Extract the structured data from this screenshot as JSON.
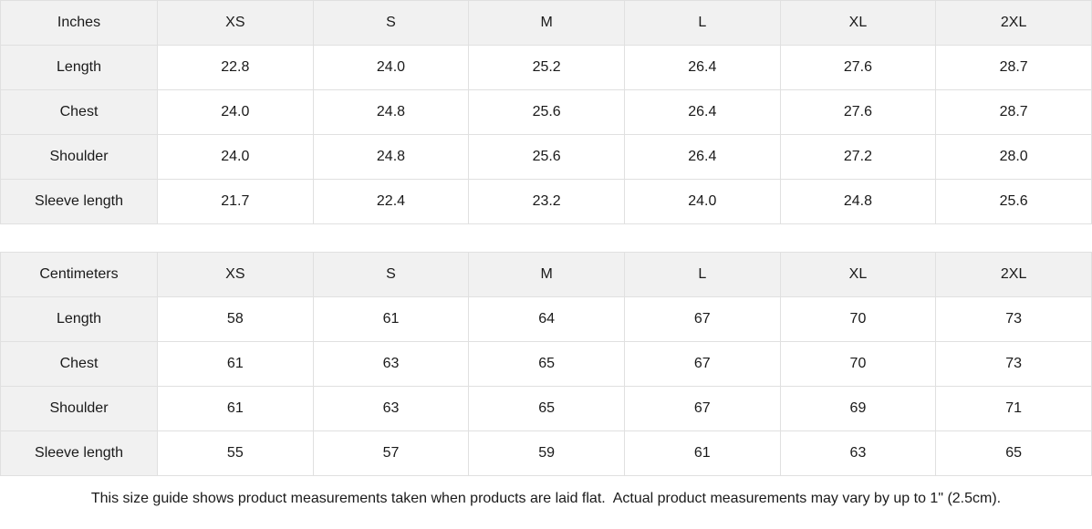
{
  "colors": {
    "header_bg": "#f1f1f1",
    "border": "#e0e0e0",
    "text": "#1a1a1a",
    "background": "#ffffff"
  },
  "chart_data": [
    {
      "type": "table",
      "title": "Inches",
      "columns": [
        "Inches",
        "XS",
        "S",
        "M",
        "L",
        "XL",
        "2XL"
      ],
      "rows": [
        {
          "label": "Length",
          "values": [
            "22.8",
            "24.0",
            "25.2",
            "26.4",
            "27.6",
            "28.7"
          ]
        },
        {
          "label": "Chest",
          "values": [
            "24.0",
            "24.8",
            "25.6",
            "26.4",
            "27.6",
            "28.7"
          ]
        },
        {
          "label": "Shoulder",
          "values": [
            "24.0",
            "24.8",
            "25.6",
            "26.4",
            "27.2",
            "28.0"
          ]
        },
        {
          "label": "Sleeve length",
          "values": [
            "21.7",
            "22.4",
            "23.2",
            "24.0",
            "24.8",
            "25.6"
          ]
        }
      ]
    },
    {
      "type": "table",
      "title": "Centimeters",
      "columns": [
        "Centimeters",
        "XS",
        "S",
        "M",
        "L",
        "XL",
        "2XL"
      ],
      "rows": [
        {
          "label": "Length",
          "values": [
            "58",
            "61",
            "64",
            "67",
            "70",
            "73"
          ]
        },
        {
          "label": "Chest",
          "values": [
            "61",
            "63",
            "65",
            "67",
            "70",
            "73"
          ]
        },
        {
          "label": "Shoulder",
          "values": [
            "61",
            "63",
            "65",
            "67",
            "69",
            "71"
          ]
        },
        {
          "label": "Sleeve length",
          "values": [
            "55",
            "57",
            "59",
            "61",
            "63",
            "65"
          ]
        }
      ]
    }
  ],
  "footer": {
    "note": "This size guide shows product measurements taken when products are laid flat.  Actual product measurements may vary by up to 1\" (2.5cm)."
  }
}
